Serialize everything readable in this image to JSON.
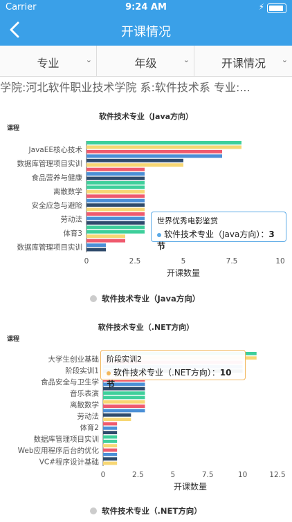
{
  "status": {
    "carrier": "Carrier",
    "time": "9:24 AM"
  },
  "nav": {
    "title": "开课情况"
  },
  "filters": [
    "专业",
    "年级",
    "开课情况"
  ],
  "info_line": "学院:河北软件职业技术学院 系:软件技术系 专业:...",
  "colors": {
    "header": "#3aa0e8"
  },
  "chart_data": [
    {
      "type": "bar",
      "orientation": "horizontal",
      "title": "软件技术专业（Java方向）",
      "ylabel": "课程",
      "xlabel": "开课数量",
      "xlim": [
        0,
        10
      ],
      "xticks": [
        "0",
        "2.5",
        "5",
        "7.5",
        "10"
      ],
      "category_labels": [
        "JavaEE核心技术",
        "数据库管理项目实训",
        "食品营养与健康",
        "离散数学",
        "安全应急与避险",
        "劳动法",
        "体育3",
        "数据库管理项目实训"
      ],
      "bar_values": [
        8,
        8,
        7,
        7,
        5,
        5,
        3,
        3,
        3,
        3,
        3,
        3,
        3,
        3,
        3,
        3,
        3,
        3,
        3,
        3,
        3,
        2,
        2,
        1,
        1
      ],
      "legend": "软件技术专业（Java方向）",
      "tooltip": {
        "title": "世界优秀电影鉴赏",
        "series": "软件技术专业（Java方向）",
        "value": "3节"
      }
    },
    {
      "type": "bar",
      "orientation": "horizontal",
      "title": "软件技术专业（.NET方向）",
      "ylabel": "课程",
      "xlabel": "开课数量",
      "xlim": [
        0,
        12.5
      ],
      "xticks": [
        "0",
        "2.5",
        "5",
        "7.5",
        "10",
        "12.5"
      ],
      "category_labels": [
        "大学生创业基础",
        "阶段实训1",
        "食品安全与卫生学",
        "音乐表演",
        "离散数学",
        "劳动法",
        "体育2",
        "数据库管理项目实训",
        "Web应用程序后台的优化",
        "VC#程序设计基础"
      ],
      "bar_values": [
        11,
        11,
        10,
        10,
        10,
        3,
        3,
        3,
        3,
        3,
        3,
        3,
        3,
        3,
        2,
        2,
        1,
        1,
        1,
        1,
        1,
        1,
        1,
        1,
        1,
        1
      ],
      "legend": "软件技术专业（.NET方向）",
      "tooltip": {
        "title": "阶段实训2",
        "series": "软件技术专业（.NET方向）",
        "value": "10节"
      }
    }
  ]
}
